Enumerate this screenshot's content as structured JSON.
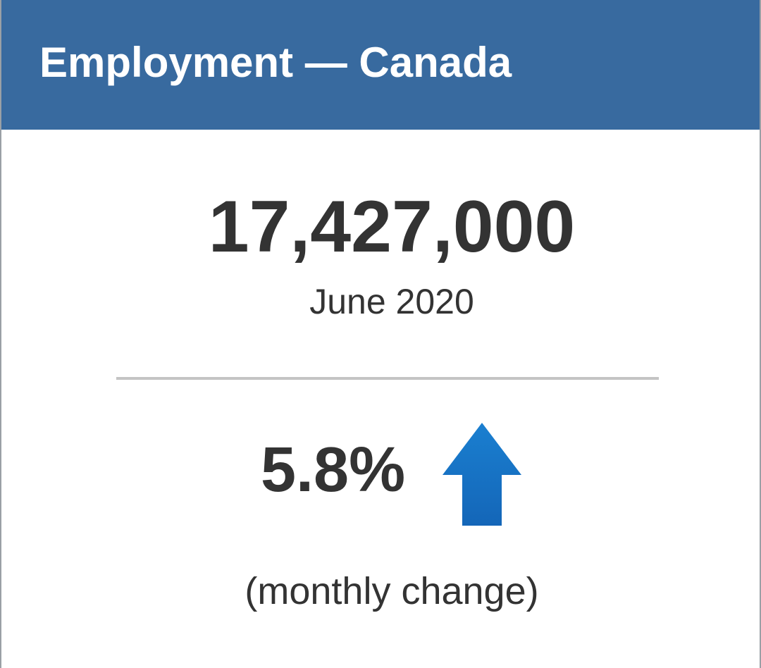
{
  "header": {
    "title": "Employment — Canada"
  },
  "stat": {
    "value": "17,427,000",
    "period": "June 2020"
  },
  "change": {
    "value": "5.8%",
    "direction_icon": "up-arrow-icon",
    "caption": "(monthly change)"
  },
  "colors": {
    "header_bg": "#386a9f",
    "header_text": "#ffffff",
    "body_text": "#333333",
    "divider": "#c4c4c4",
    "arrow": "#1f74c3"
  }
}
